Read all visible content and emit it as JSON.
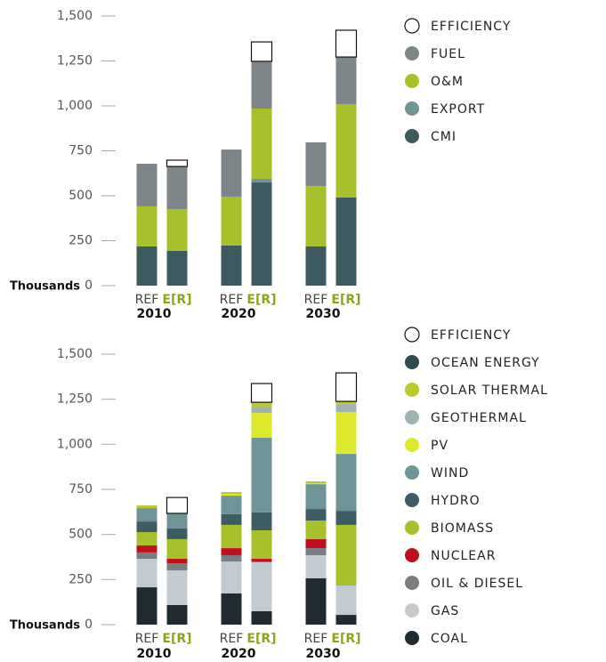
{
  "chart_data": [
    {
      "type": "stacked-bar",
      "y_label": "Thousands",
      "categories": [
        "REF",
        "E[R]",
        "REF",
        "E[R]",
        "REF",
        "E[R]"
      ],
      "groups": [
        "2010",
        "2020",
        "2030"
      ],
      "ylim": [
        0,
        1500
      ],
      "yticks": [
        0,
        250,
        500,
        750,
        {
          "value": 1000,
          "label": "1,000"
        },
        {
          "value": 1250,
          "label": "1,250"
        },
        {
          "value": 1500,
          "label": "1,500"
        }
      ],
      "series": [
        {
          "name": "CMI",
          "color": "#3e5a61",
          "values": [
            218,
            193,
            223,
            574,
            218,
            490
          ]
        },
        {
          "name": "EXPORT",
          "color": "#6f9497",
          "values": [
            0,
            0,
            0,
            20,
            0,
            0
          ]
        },
        {
          "name": "O&M",
          "color": "#a7c12a",
          "values": [
            223,
            233,
            272,
            391,
            336,
            520
          ]
        },
        {
          "name": "FUEL",
          "color": "#7d8589",
          "values": [
            237,
            237,
            262,
            263,
            243,
            262
          ]
        },
        {
          "name": "EFFICIENCY",
          "color": "#ffffff",
          "values": [
            0,
            35,
            0,
            108,
            0,
            149
          ]
        }
      ]
    },
    {
      "type": "stacked-bar",
      "y_label": "Thousands",
      "categories": [
        "REF",
        "E[R]",
        "REF",
        "E[R]",
        "REF",
        "E[R]"
      ],
      "groups": [
        "2010",
        "2020",
        "2030"
      ],
      "ylim": [
        0,
        1500
      ],
      "yticks": [
        0,
        250,
        500,
        750,
        {
          "value": 1000,
          "label": "1,000"
        },
        {
          "value": 1250,
          "label": "1,250"
        },
        {
          "value": 1500,
          "label": "1,500"
        }
      ],
      "series": [
        {
          "name": "COAL",
          "color": "#1f2b31",
          "values": [
            207,
            109,
            173,
            74,
            257,
            54
          ]
        },
        {
          "name": "GAS",
          "color": "#c3cbd0",
          "values": [
            158,
            192,
            177,
            271,
            128,
            163
          ]
        },
        {
          "name": "OIL & DIESEL",
          "color": "#777f84",
          "values": [
            35,
            39,
            35,
            5,
            39,
            0
          ]
        },
        {
          "name": "NUCLEAR",
          "color": "#c0101e",
          "values": [
            39,
            25,
            39,
            15,
            50,
            0
          ]
        },
        {
          "name": "BIOMASS",
          "color": "#a7c12a",
          "values": [
            74,
            109,
            129,
            158,
            103,
            336
          ]
        },
        {
          "name": "HYDRO",
          "color": "#3e5c63",
          "values": [
            59,
            59,
            59,
            99,
            64,
            78
          ]
        },
        {
          "name": "WIND",
          "color": "#6f9497",
          "values": [
            74,
            84,
            103,
            414,
            138,
            316
          ]
        },
        {
          "name": "PV",
          "color": "#dde82a",
          "values": [
            0,
            0,
            10,
            138,
            5,
            232
          ]
        },
        {
          "name": "GEOTHERMAL",
          "color": "#a0b3b3",
          "values": [
            0,
            0,
            0,
            30,
            0,
            44
          ]
        },
        {
          "name": "SOLAR THERMAL",
          "color": "#b9ca2a",
          "values": [
            15,
            0,
            10,
            29,
            10,
            15
          ]
        },
        {
          "name": "OCEAN ENERGY",
          "color": "#2f4a51",
          "values": [
            0,
            0,
            0,
            0,
            0,
            0
          ]
        },
        {
          "name": "EFFICIENCY",
          "color": "#ffffff",
          "values": [
            0,
            88,
            0,
            104,
            0,
            158
          ]
        }
      ]
    }
  ]
}
